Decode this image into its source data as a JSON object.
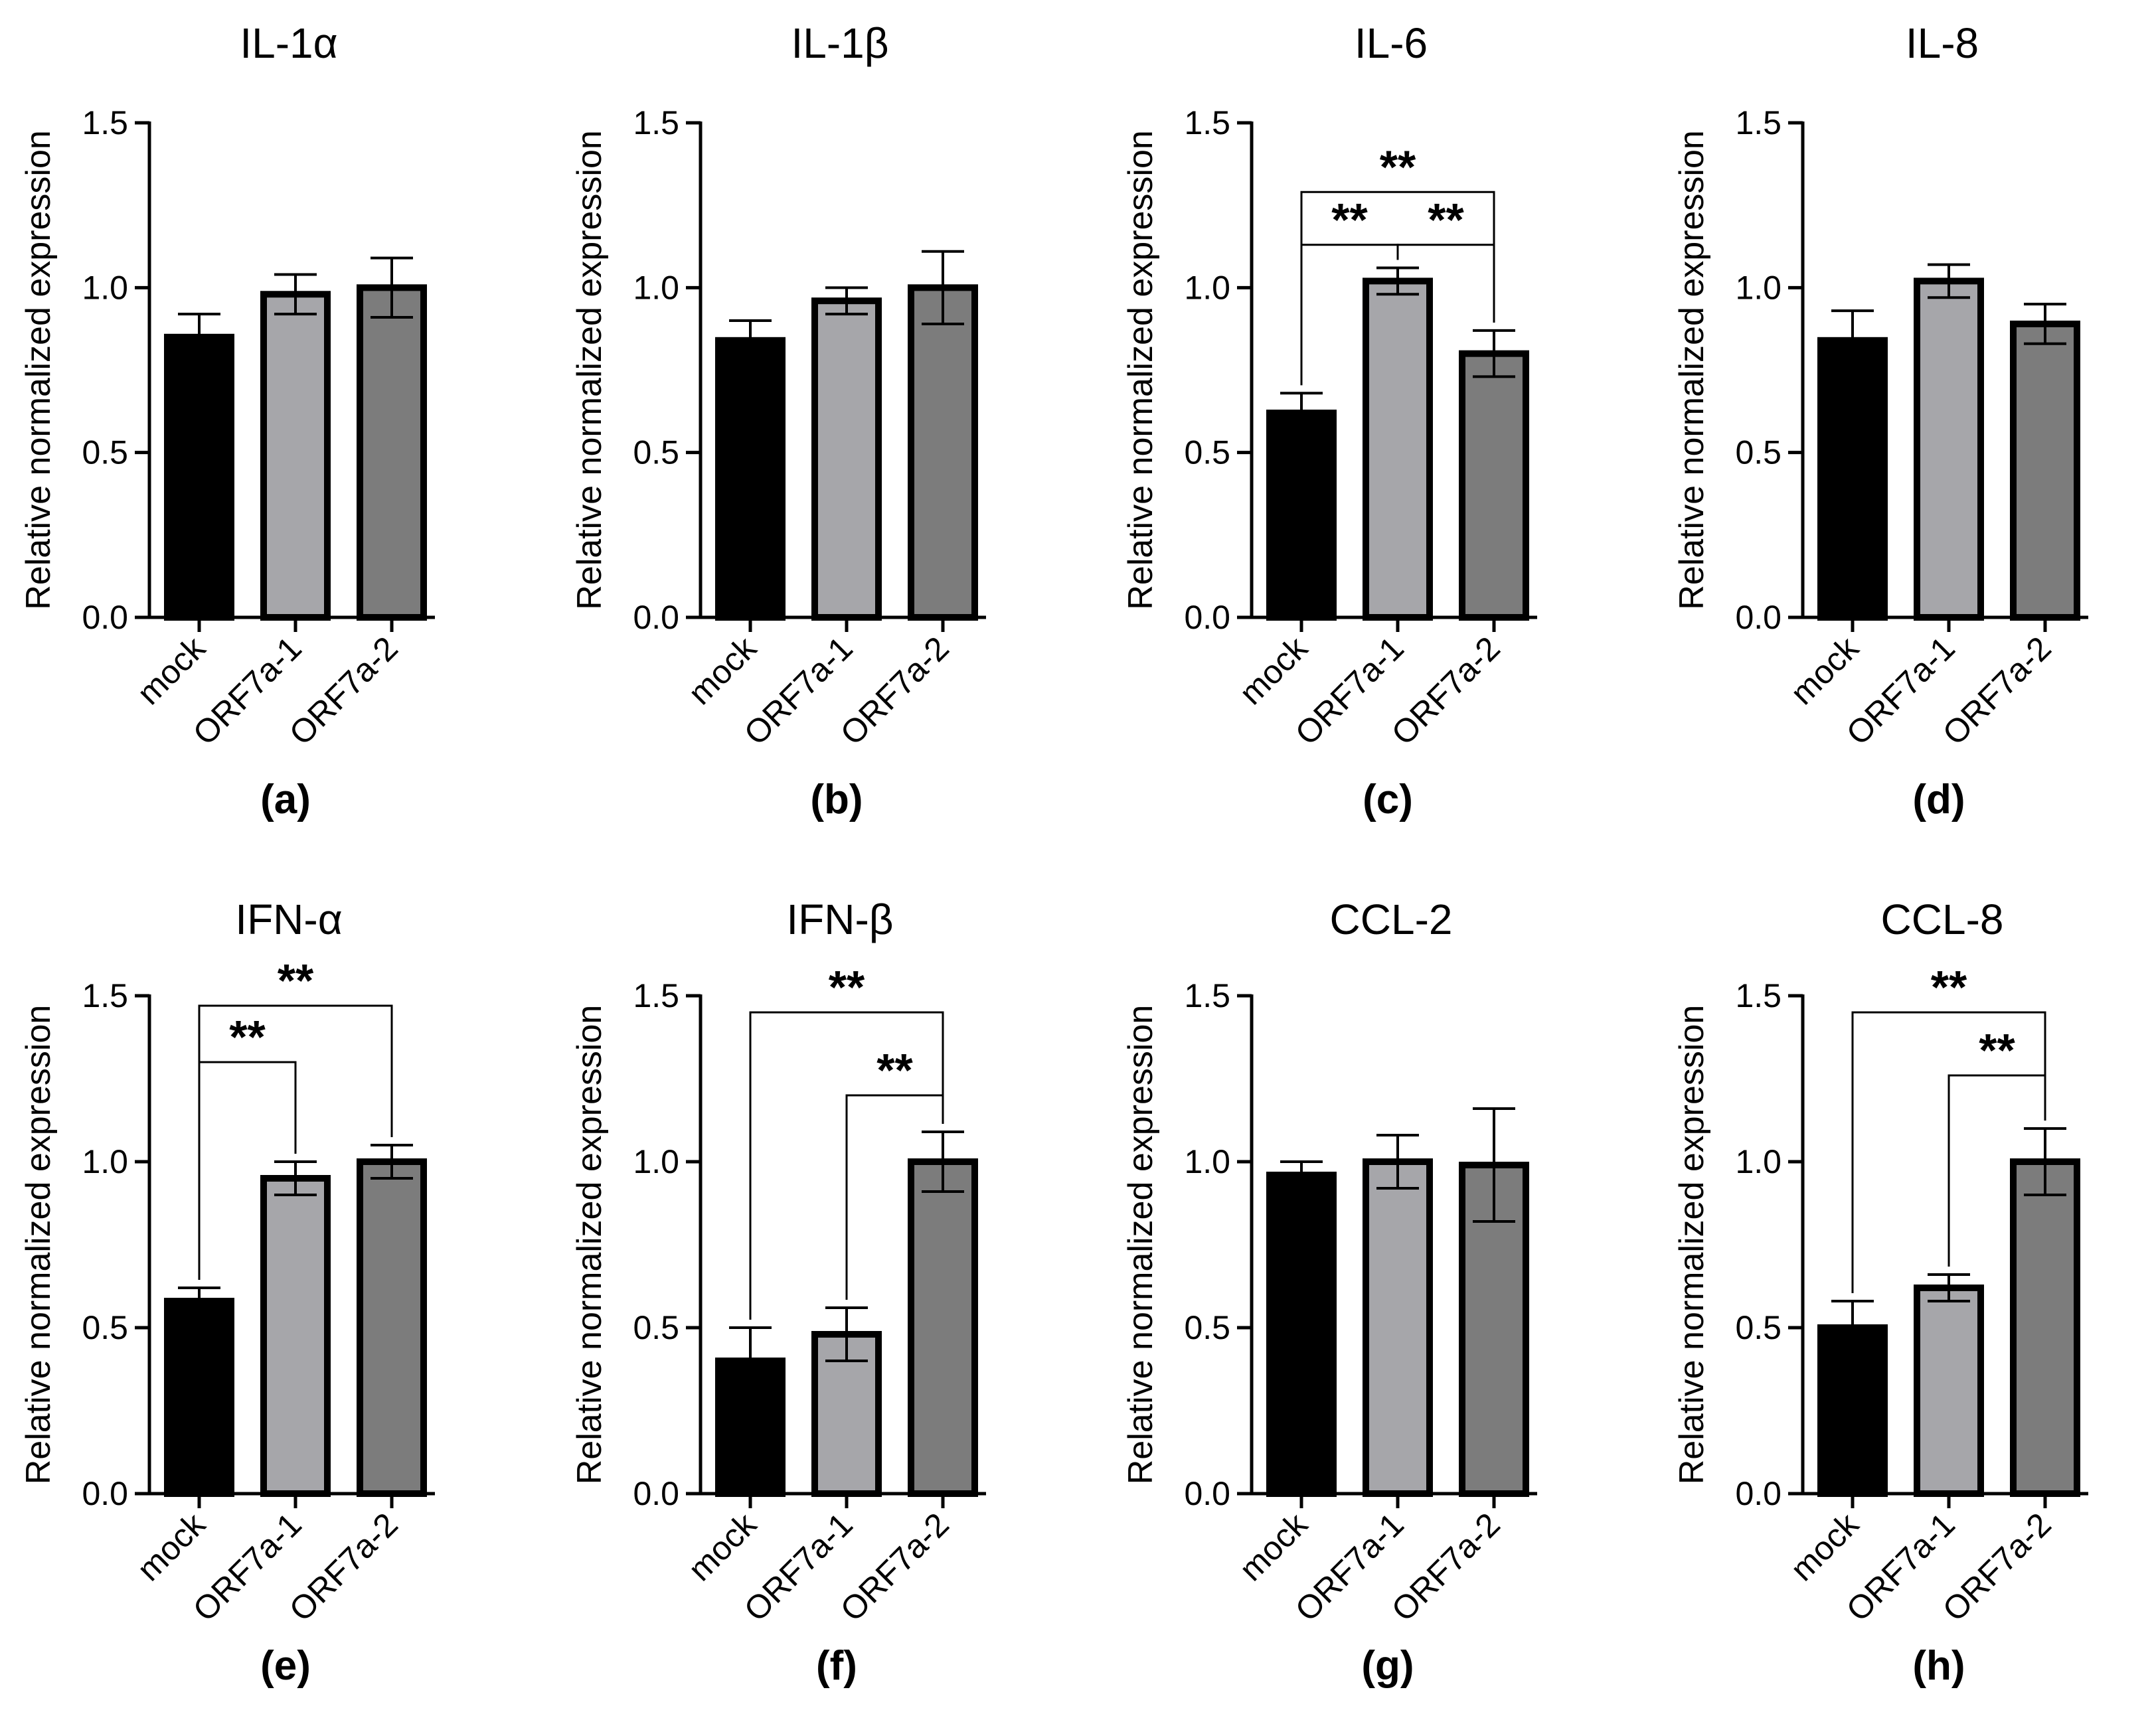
{
  "colors": {
    "mock": "#000000",
    "orf7a1": "#a6a6aa",
    "orf7a2": "#7c7c7c",
    "outline": "#000000"
  },
  "chart_data": [
    {
      "type": "bar",
      "title": "IL-1α",
      "panel_label": "(a)",
      "xlabel": "",
      "ylabel": "Relative normalized expression",
      "categories": [
        "mock",
        "ORF7a-1",
        "ORF7a-2"
      ],
      "values": [
        0.85,
        0.98,
        1.0
      ],
      "errors": [
        0.07,
        0.06,
        0.09
      ],
      "ylim": [
        0,
        1.5
      ],
      "yticks": [
        "0.0",
        "0.5",
        "1.0",
        "1.5"
      ],
      "significance": []
    },
    {
      "type": "bar",
      "title": "IL-1β",
      "panel_label": "(b)",
      "xlabel": "",
      "ylabel": "Relative normalized expression",
      "categories": [
        "mock",
        "ORF7a-1",
        "ORF7a-2"
      ],
      "values": [
        0.84,
        0.96,
        1.0
      ],
      "errors": [
        0.06,
        0.04,
        0.11
      ],
      "ylim": [
        0,
        1.5
      ],
      "yticks": [
        "0.0",
        "0.5",
        "1.0",
        "1.5"
      ],
      "significance": []
    },
    {
      "type": "bar",
      "title": "IL-6",
      "panel_label": "(c)",
      "xlabel": "",
      "ylabel": "Relative normalized expression",
      "categories": [
        "mock",
        "ORF7a-1",
        "ORF7a-2"
      ],
      "values": [
        0.62,
        1.02,
        0.8
      ],
      "errors": [
        0.06,
        0.04,
        0.07
      ],
      "ylim": [
        0,
        1.5
      ],
      "yticks": [
        "0.0",
        "0.5",
        "1.0",
        "1.5"
      ],
      "significance": [
        {
          "from": 0,
          "to": 1,
          "label": "**",
          "y": 1.13
        },
        {
          "from": 1,
          "to": 2,
          "label": "**",
          "y": 1.13
        },
        {
          "from": 0,
          "to": 2,
          "label": "**",
          "y": 1.29
        }
      ]
    },
    {
      "type": "bar",
      "title": "IL-8",
      "panel_label": "(d)",
      "xlabel": "",
      "ylabel": "Relative normalized expression",
      "categories": [
        "mock",
        "ORF7a-1",
        "ORF7a-2"
      ],
      "values": [
        0.84,
        1.02,
        0.89
      ],
      "errors": [
        0.09,
        0.05,
        0.06
      ],
      "ylim": [
        0,
        1.5
      ],
      "yticks": [
        "0.0",
        "0.5",
        "1.0",
        "1.5"
      ],
      "significance": []
    },
    {
      "type": "bar",
      "title": "IFN-α",
      "panel_label": "(e)",
      "xlabel": "",
      "ylabel": "Relative normalized expression",
      "categories": [
        "mock",
        "ORF7a-1",
        "ORF7a-2"
      ],
      "values": [
        0.58,
        0.95,
        1.0
      ],
      "errors": [
        0.04,
        0.05,
        0.05
      ],
      "ylim": [
        0,
        1.5
      ],
      "yticks": [
        "0.0",
        "0.5",
        "1.0",
        "1.5"
      ],
      "significance": [
        {
          "from": 0,
          "to": 1,
          "label": "**",
          "y": 1.3
        },
        {
          "from": 0,
          "to": 2,
          "label": "**",
          "y": 1.47
        }
      ]
    },
    {
      "type": "bar",
      "title": "IFN-β",
      "panel_label": "(f)",
      "xlabel": "",
      "ylabel": "Relative normalized expression",
      "categories": [
        "mock",
        "ORF7a-1",
        "ORF7a-2"
      ],
      "values": [
        0.4,
        0.48,
        1.0
      ],
      "errors": [
        0.1,
        0.08,
        0.09
      ],
      "ylim": [
        0,
        1.5
      ],
      "yticks": [
        "0.0",
        "0.5",
        "1.0",
        "1.5"
      ],
      "significance": [
        {
          "from": 1,
          "to": 2,
          "label": "**",
          "y": 1.2
        },
        {
          "from": 0,
          "to": 2,
          "label": "**",
          "y": 1.45
        }
      ]
    },
    {
      "type": "bar",
      "title": "CCL-2",
      "panel_label": "(g)",
      "xlabel": "",
      "ylabel": "Relative normalized expression",
      "categories": [
        "mock",
        "ORF7a-1",
        "ORF7a-2"
      ],
      "values": [
        0.96,
        1.0,
        0.99
      ],
      "errors": [
        0.04,
        0.08,
        0.17
      ],
      "ylim": [
        0,
        1.5
      ],
      "yticks": [
        "0.0",
        "0.5",
        "1.0",
        "1.5"
      ],
      "significance": []
    },
    {
      "type": "bar",
      "title": "CCL-8",
      "panel_label": "(h)",
      "xlabel": "",
      "ylabel": "Relative normalized expression",
      "categories": [
        "mock",
        "ORF7a-1",
        "ORF7a-2"
      ],
      "values": [
        0.5,
        0.62,
        1.0
      ],
      "errors": [
        0.08,
        0.04,
        0.1
      ],
      "ylim": [
        0,
        1.5
      ],
      "yticks": [
        "0.0",
        "0.5",
        "1.0",
        "1.5"
      ],
      "significance": [
        {
          "from": 1,
          "to": 2,
          "label": "**",
          "y": 1.26
        },
        {
          "from": 0,
          "to": 2,
          "label": "**",
          "y": 1.45
        }
      ]
    }
  ]
}
